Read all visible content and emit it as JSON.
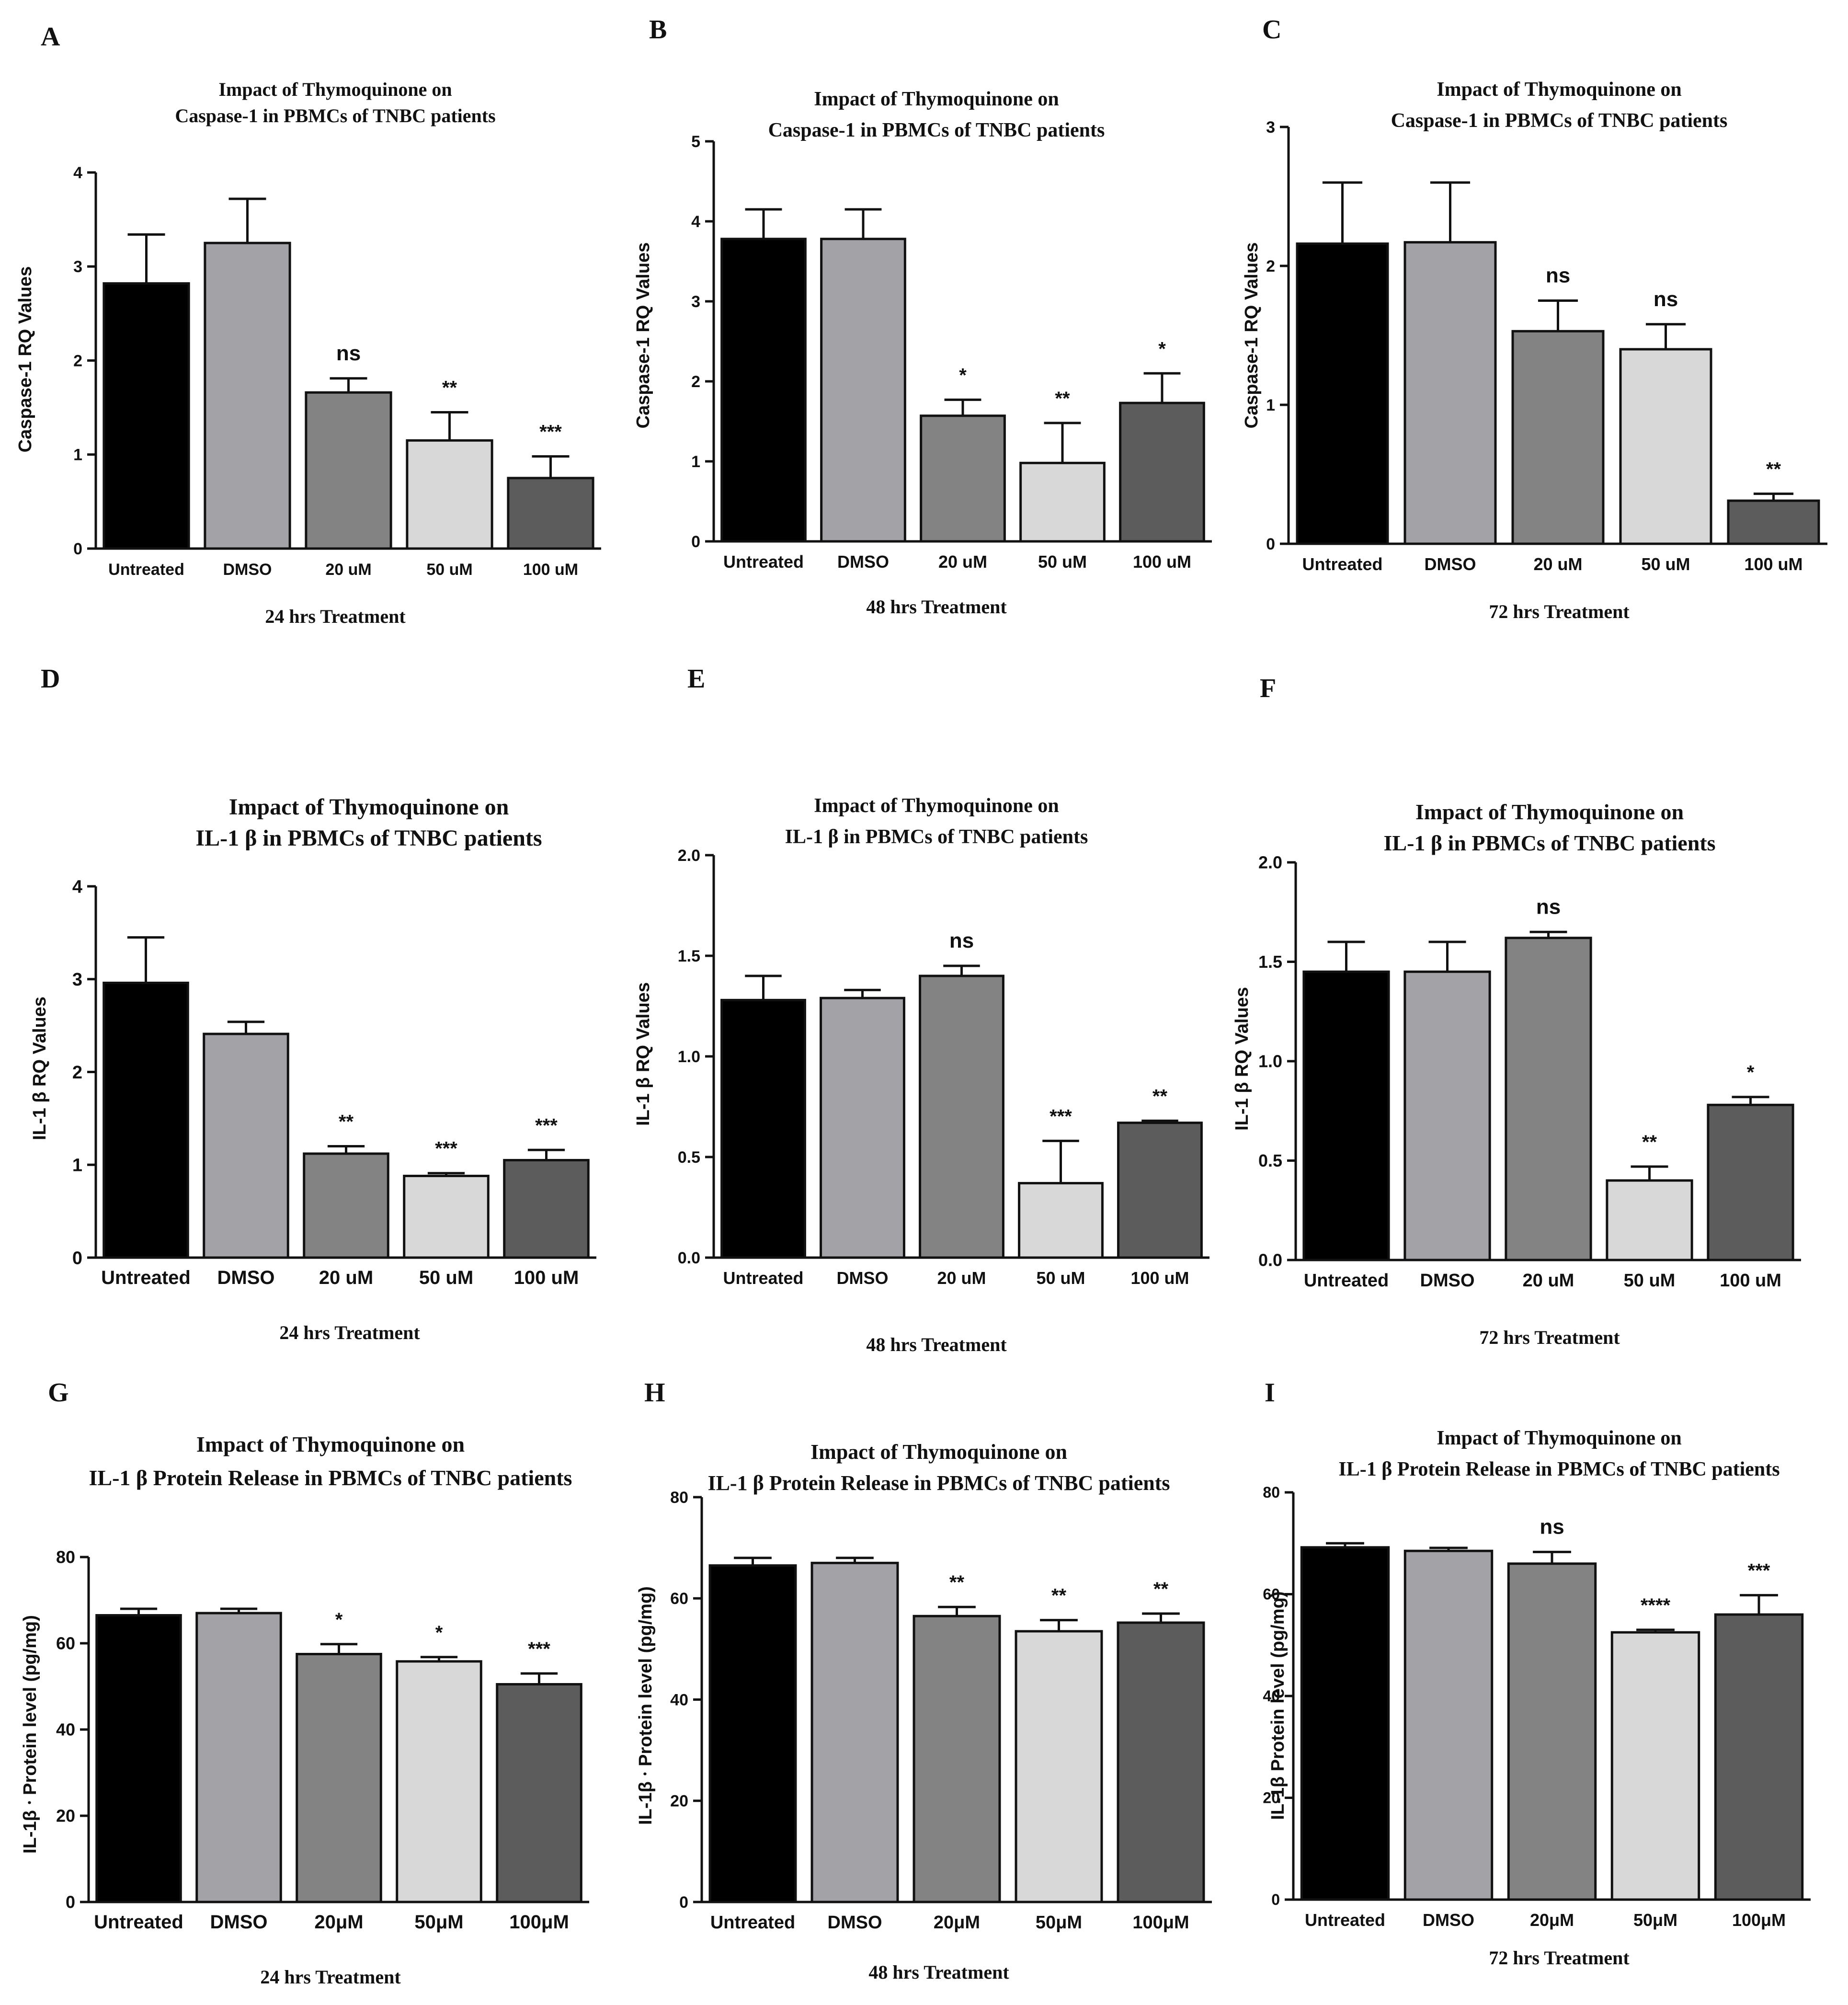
{
  "figure": {
    "panels": [
      {
        "id": "A",
        "chart_data": {
          "type": "bar",
          "title_lines": [
            "Impact of Thymoquinone on",
            "Caspase-1 in PBMCs of TNBC patients"
          ],
          "xlabel": "24 hrs Treatment",
          "ylabel": "Caspase-1 RQ Values",
          "categories": [
            "Untreated",
            "DMSO",
            "20 uM",
            "50 uM",
            "100 uM"
          ],
          "values": [
            2.82,
            3.25,
            1.66,
            1.15,
            0.75
          ],
          "errors": [
            0.52,
            0.47,
            0.15,
            0.3,
            0.23
          ],
          "significance": [
            "",
            "",
            "ns",
            "**",
            "***"
          ],
          "ylim": [
            0,
            4
          ],
          "yticks": [
            0,
            1,
            2,
            3,
            4
          ],
          "tick_labels": [
            "0",
            "1",
            "2",
            "3",
            "4"
          ]
        }
      },
      {
        "id": "B",
        "chart_data": {
          "type": "bar",
          "title_lines": [
            "Impact of Thymoquinone on",
            "Caspase-1 in PBMCs of TNBC patients"
          ],
          "xlabel": "48 hrs Treatment",
          "ylabel": "Caspase-1 RQ Values",
          "categories": [
            "Untreated",
            "DMSO",
            "20 uM",
            "50 uM",
            "100 uM"
          ],
          "values": [
            3.78,
            3.78,
            1.57,
            0.98,
            1.73
          ],
          "errors": [
            0.37,
            0.37,
            0.2,
            0.5,
            0.37
          ],
          "significance": [
            "",
            "",
            "*",
            "**",
            "*"
          ],
          "ylim": [
            0,
            5
          ],
          "yticks": [
            0,
            1,
            2,
            3,
            4,
            5
          ],
          "tick_labels": [
            "0",
            "1",
            "2",
            "3",
            "4",
            "5"
          ]
        }
      },
      {
        "id": "C",
        "chart_data": {
          "type": "bar",
          "title_lines": [
            "Impact of Thymoquinone on",
            "Caspase-1 in PBMCs of TNBC patients"
          ],
          "xlabel": "72 hrs Treatment",
          "ylabel": "Caspase-1 RQ Values",
          "categories": [
            "Untreated",
            "DMSO",
            "20 uM",
            "50 uM",
            "100 uM"
          ],
          "values": [
            2.16,
            2.17,
            1.53,
            1.4,
            0.31
          ],
          "errors": [
            0.44,
            0.43,
            0.22,
            0.18,
            0.05
          ],
          "significance": [
            "",
            "",
            "ns",
            "ns",
            "**"
          ],
          "ylim": [
            0,
            3
          ],
          "yticks": [
            0,
            1,
            2,
            3
          ],
          "tick_labels": [
            "0",
            "1",
            "2",
            "3"
          ]
        }
      },
      {
        "id": "D",
        "chart_data": {
          "type": "bar",
          "title_lines": [
            "Impact of Thymoquinone on",
            "IL-1 β in PBMCs of TNBC patients"
          ],
          "xlabel": "24 hrs Treatment",
          "ylabel": "IL-1 β RQ Values",
          "categories": [
            "Untreated",
            "DMSO",
            "20 uM",
            "50 uM",
            "100 uM"
          ],
          "values": [
            2.96,
            2.41,
            1.12,
            0.88,
            1.05
          ],
          "errors": [
            0.49,
            0.13,
            0.08,
            0.03,
            0.11
          ],
          "significance": [
            "",
            "",
            "**",
            "***",
            "***"
          ],
          "ylim": [
            0,
            4
          ],
          "yticks": [
            0,
            1,
            2,
            3,
            4
          ],
          "tick_labels": [
            "0",
            "1",
            "2",
            "3",
            "4"
          ]
        }
      },
      {
        "id": "E",
        "chart_data": {
          "type": "bar",
          "title_lines": [
            "Impact of Thymoquinone on",
            "IL-1 β in PBMCs of TNBC patients"
          ],
          "xlabel": "48 hrs Treatment",
          "ylabel": "IL-1 β RQ Values",
          "categories": [
            "Untreated",
            "DMSO",
            "20 uM",
            "50 uM",
            "100 uM"
          ],
          "values": [
            1.28,
            1.29,
            1.4,
            0.37,
            0.67
          ],
          "errors": [
            0.12,
            0.04,
            0.05,
            0.21,
            0.01
          ],
          "significance": [
            "",
            "",
            "ns",
            "***",
            "**"
          ],
          "ylim": [
            0,
            2
          ],
          "yticks": [
            0,
            0.5,
            1,
            1.5,
            2
          ],
          "tick_labels": [
            "0.0",
            "0.5",
            "1.0",
            "1.5",
            "2.0"
          ]
        }
      },
      {
        "id": "F",
        "chart_data": {
          "type": "bar",
          "title_lines": [
            "Impact of Thymoquinone on",
            "IL-1 β in PBMCs of TNBC patients"
          ],
          "xlabel": "72 hrs Treatment",
          "ylabel": "IL-1 β RQ Values",
          "categories": [
            "Untreated",
            "DMSO",
            "20 uM",
            "50 uM",
            "100 uM"
          ],
          "values": [
            1.45,
            1.45,
            1.62,
            0.4,
            0.78
          ],
          "errors": [
            0.15,
            0.15,
            0.03,
            0.07,
            0.04
          ],
          "significance": [
            "",
            "",
            "ns",
            "**",
            "*"
          ],
          "ylim": [
            0,
            2
          ],
          "yticks": [
            0,
            0.5,
            1,
            1.5,
            2
          ],
          "tick_labels": [
            "0.0",
            "0.5",
            "1.0",
            "1.5",
            "2.0"
          ]
        }
      },
      {
        "id": "G",
        "chart_data": {
          "type": "bar",
          "title_lines": [
            "Impact of Thymoquinone on",
            "IL-1 β Protein Release in PBMCs of TNBC patients"
          ],
          "xlabel": "24 hrs Treatment",
          "ylabel": "IL-1β  ⸱ Protein level (pg/mg)",
          "categories": [
            "Untreated",
            "DMSO",
            "20μM",
            "50μM",
            "100μM"
          ],
          "values": [
            66.5,
            67.0,
            57.5,
            55.8,
            50.5
          ],
          "errors": [
            1.5,
            1.0,
            2.3,
            1.0,
            2.5
          ],
          "significance": [
            "",
            "",
            "*",
            "*",
            "***"
          ],
          "ylim": [
            0,
            80
          ],
          "yticks": [
            0,
            20,
            40,
            60,
            80
          ],
          "tick_labels": [
            "0",
            "20",
            "40",
            "60",
            "80"
          ]
        }
      },
      {
        "id": "H",
        "chart_data": {
          "type": "bar",
          "title_lines": [
            "Impact of Thymoquinone on",
            "IL-1 β Protein Release in PBMCs of TNBC patients"
          ],
          "xlabel": "48 hrs Treatment",
          "ylabel": "IL-1β  ⸱ Protein level (pg/mg)",
          "categories": [
            "Untreated",
            "DMSO",
            "20μM",
            "50μM",
            "100μM"
          ],
          "values": [
            66.5,
            67.0,
            56.5,
            53.5,
            55.2
          ],
          "errors": [
            1.5,
            1.0,
            1.8,
            2.2,
            1.8
          ],
          "significance": [
            "",
            "",
            "**",
            "**",
            "**"
          ],
          "ylim": [
            0,
            80
          ],
          "yticks": [
            0,
            20,
            40,
            60,
            80
          ],
          "tick_labels": [
            "0",
            "20",
            "40",
            "60",
            "80"
          ]
        }
      },
      {
        "id": "I",
        "chart_data": {
          "type": "bar",
          "title_lines": [
            "Impact of Thymoquinone on",
            "IL-1 β Protein Release in PBMCs of TNBC patients"
          ],
          "xlabel": "72 hrs Treatment",
          "ylabel": "IL-1β  Protein level (pg/mg)",
          "categories": [
            "Untreated",
            "DMSO",
            "20μM",
            "50μM",
            "100μM"
          ],
          "values": [
            69.2,
            68.5,
            66.0,
            52.5,
            56.0
          ],
          "errors": [
            0.8,
            0.6,
            2.3,
            0.5,
            3.8
          ],
          "significance": [
            "",
            "",
            "ns",
            "****",
            "***"
          ],
          "ylim": [
            0,
            80
          ],
          "yticks": [
            0,
            20,
            40,
            60,
            80
          ],
          "tick_labels": [
            "0",
            "20",
            "40",
            "60",
            "80"
          ]
        }
      }
    ],
    "colors": {
      "Untreated": "#000000",
      "DMSO": "#a3a3a7",
      "20": "#838383",
      "50": "#d8d8d8",
      "100": "#5c5c5c",
      "axis": "#111111"
    }
  }
}
